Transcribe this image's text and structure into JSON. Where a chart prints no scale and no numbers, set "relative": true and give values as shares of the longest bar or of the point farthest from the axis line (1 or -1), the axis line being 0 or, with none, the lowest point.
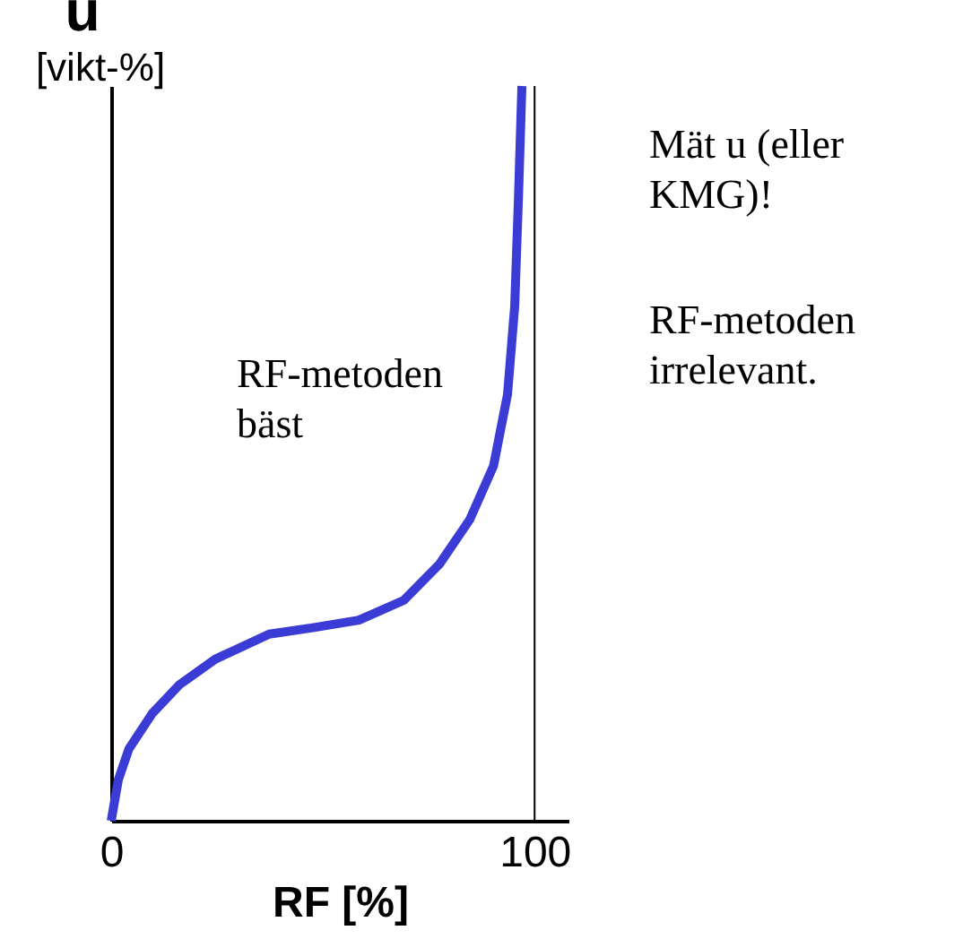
{
  "chart_data": {
    "type": "line",
    "relative": true,
    "xlabel": "RF [%]",
    "ylabel": "u\n[vikt-%]",
    "xlim": [
      0,
      108
    ],
    "xticks": [
      0,
      100
    ],
    "grid": false,
    "x": [
      0,
      1.7,
      4.2,
      9.7,
      16.1,
      24.6,
      37.3,
      47.9,
      58.5,
      69.1,
      77.5,
      84.7,
      90.3,
      93.6,
      95.3,
      96.2,
      97.0
    ],
    "series": [
      {
        "color": "#3b3bd6",
        "values": [
          0,
          0.056,
          0.098,
          0.146,
          0.185,
          0.22,
          0.254,
          0.263,
          0.273,
          0.3,
          0.349,
          0.41,
          0.483,
          0.58,
          0.7,
          0.85,
          1.0
        ]
      }
    ],
    "ref_lines": [
      {
        "axis": "x",
        "value": 100,
        "color": "#000000",
        "line_style": "solid"
      }
    ],
    "annotations": [
      "RF-metoden\nbäst",
      "Mät u (eller\nKMG)!",
      "RF-metoden\nirrelevant."
    ]
  }
}
